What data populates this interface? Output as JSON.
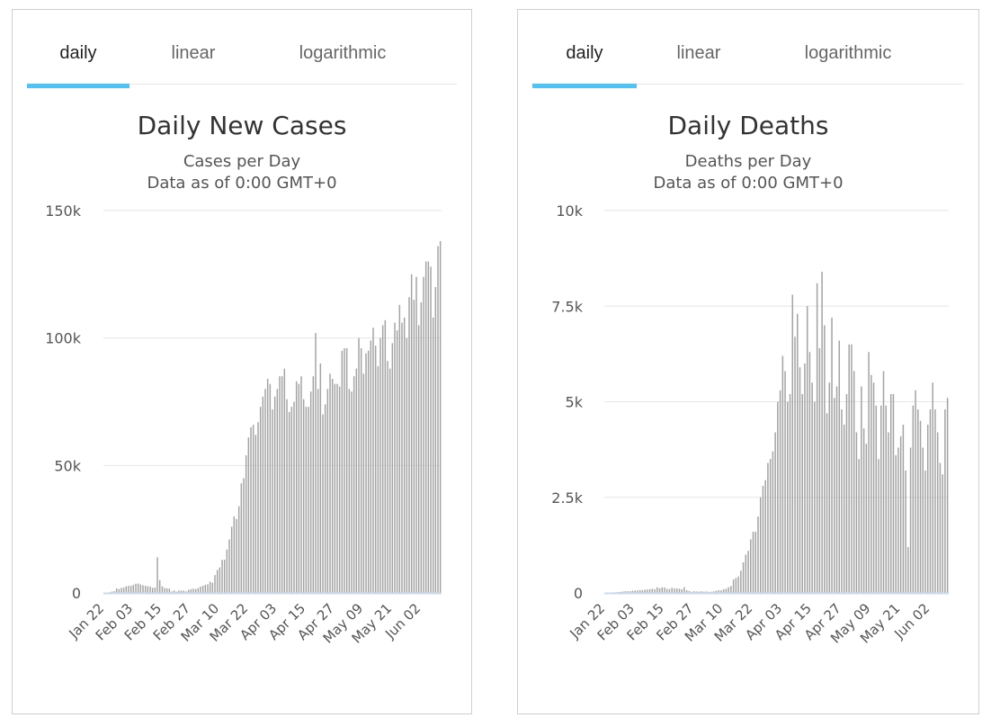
{
  "colors": {
    "accent": "#4fc3f7",
    "bar": "#a3a3a3",
    "grid": "#e6e6e6",
    "axis": "#c9dcec"
  },
  "panels": [
    {
      "tabs": [
        "daily",
        "linear",
        "logarithmic"
      ],
      "title": "Daily New Cases",
      "subtitle1": "Cases per Day",
      "subtitle2": "Data as of 0:00 GMT+0"
    },
    {
      "tabs": [
        "daily",
        "linear",
        "logarithmic"
      ],
      "title": "Daily Deaths",
      "subtitle1": "Deaths per Day",
      "subtitle2": "Data as of 0:00 GMT+0"
    }
  ],
  "chart_data": [
    {
      "type": "bar",
      "title": "Daily New Cases",
      "subtitle": "Cases per Day",
      "xlabel": "",
      "ylabel": "",
      "ylim": [
        0,
        150000
      ],
      "yticks": [
        0,
        50000,
        100000,
        150000
      ],
      "ytick_labels": [
        "0",
        "50k",
        "100k",
        "150k"
      ],
      "x_tick_labels": [
        "Jan 22",
        "Feb 03",
        "Feb 15",
        "Feb 27",
        "Mar 10",
        "Mar 22",
        "Apr 03",
        "Apr 15",
        "Apr 27",
        "May 09",
        "May 21",
        "Jun 02"
      ],
      "x_tick_interval_days": 12,
      "grid": true,
      "values": [
        100,
        150,
        270,
        500,
        700,
        1800,
        1500,
        2000,
        2100,
        2600,
        2800,
        2800,
        3200,
        3600,
        3700,
        3300,
        3000,
        2800,
        2600,
        2500,
        2000,
        2100,
        14000,
        5000,
        2600,
        2000,
        1800,
        1700,
        600,
        1000,
        500,
        1000,
        900,
        900,
        600,
        1200,
        1500,
        1700,
        1500,
        1900,
        2500,
        2800,
        3200,
        3400,
        4400,
        4000,
        7000,
        9000,
        10000,
        13000,
        13000,
        17000,
        21000,
        26000,
        30000,
        29000,
        34000,
        43000,
        45000,
        54000,
        61000,
        65000,
        66000,
        62000,
        67000,
        73000,
        77000,
        80000,
        84000,
        82000,
        72000,
        77000,
        80000,
        85000,
        85000,
        88000,
        76000,
        71000,
        73000,
        75000,
        83000,
        82000,
        85000,
        76000,
        73000,
        73000,
        79000,
        85000,
        102000,
        80000,
        90000,
        70000,
        74000,
        80000,
        86000,
        84000,
        82000,
        82000,
        81000,
        95000,
        96000,
        96000,
        80000,
        79000,
        85000,
        88000,
        100000,
        96000,
        86000,
        94000,
        95000,
        99000,
        104000,
        97000,
        89000,
        100000,
        105000,
        107000,
        91000,
        88000,
        98000,
        106000,
        103000,
        113000,
        106000,
        108000,
        100000,
        116000,
        125000,
        115000,
        124000,
        105000,
        114000,
        124000,
        130000,
        130000,
        128000,
        108000,
        120000,
        136000,
        138000
      ]
    },
    {
      "type": "bar",
      "title": "Daily Deaths",
      "subtitle": "Deaths per Day",
      "xlabel": "",
      "ylabel": "",
      "ylim": [
        0,
        10000
      ],
      "yticks": [
        0,
        2500,
        5000,
        7500,
        10000
      ],
      "ytick_labels": [
        "0",
        "2.5k",
        "5k",
        "7.5k",
        "10k"
      ],
      "x_tick_labels": [
        "Jan 22",
        "Feb 03",
        "Feb 15",
        "Feb 27",
        "Mar 10",
        "Mar 22",
        "Apr 03",
        "Apr 15",
        "Apr 27",
        "May 09",
        "May 21",
        "Jun 02"
      ],
      "x_tick_interval_days": 12,
      "grid": true,
      "values": [
        2,
        2,
        8,
        16,
        14,
        26,
        26,
        38,
        43,
        46,
        45,
        57,
        64,
        66,
        73,
        73,
        86,
        89,
        97,
        108,
        97,
        146,
        121,
        143,
        142,
        105,
        98,
        136,
        116,
        118,
        109,
        97,
        150,
        71,
        52,
        29,
        44,
        37,
        35,
        42,
        31,
        38,
        31,
        30,
        41,
        58,
        72,
        68,
        97,
        110,
        150,
        180,
        350,
        390,
        430,
        580,
        800,
        1000,
        1100,
        1400,
        1600,
        1600,
        2000,
        2500,
        2800,
        2950,
        3400,
        3500,
        3700,
        4200,
        5000,
        5300,
        6200,
        5800,
        5000,
        5200,
        7800,
        6700,
        7300,
        5900,
        5200,
        6000,
        7500,
        6300,
        5500,
        5000,
        8100,
        6400,
        8400,
        7000,
        4700,
        5500,
        7200,
        5100,
        5400,
        6600,
        4800,
        4400,
        5200,
        6500,
        6500,
        5800,
        4200,
        3500,
        5400,
        4300,
        3900,
        6300,
        5700,
        5500,
        4900,
        3500,
        4900,
        5800,
        4900,
        4200,
        5200,
        5200,
        3600,
        3800,
        4100,
        4400,
        3200,
        1200,
        3800,
        4900,
        5300,
        4800,
        4500,
        3800,
        3200,
        4400,
        4800,
        5500,
        4800,
        4200,
        3400,
        3100,
        4800,
        5100
      ]
    }
  ]
}
